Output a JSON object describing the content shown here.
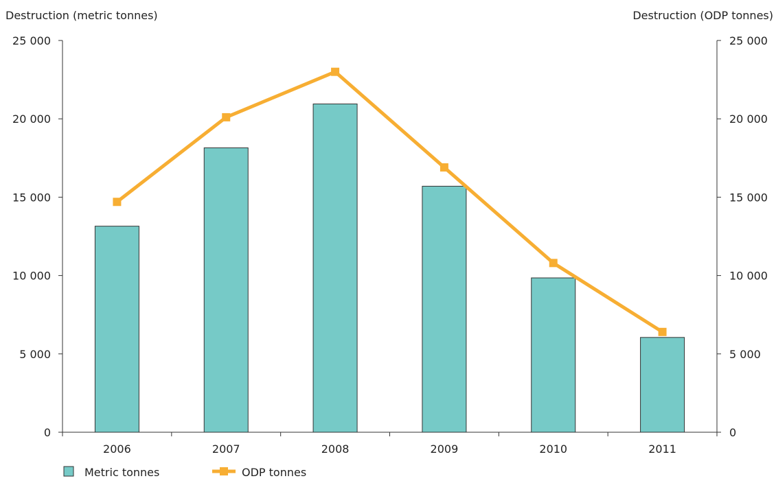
{
  "chart_data": {
    "type": "bar",
    "categories": [
      "2006",
      "2007",
      "2008",
      "2009",
      "2010",
      "2011"
    ],
    "series": [
      {
        "name": "Metric tonnes",
        "type": "bar",
        "axis": "left",
        "values": [
          13150,
          18150,
          20950,
          15700,
          9850,
          6050
        ],
        "color": "#76cac7"
      },
      {
        "name": "ODP tonnes",
        "type": "line",
        "axis": "right",
        "marker": "square",
        "values": [
          14700,
          20100,
          23000,
          16900,
          10800,
          6400
        ],
        "color": "#f7ae33"
      }
    ],
    "ylabel_left": "Destruction (metric tonnes)",
    "ylabel_right": "Destruction (ODP tonnes)",
    "ylim_left": [
      0,
      25000
    ],
    "ylim_right": [
      0,
      25000
    ],
    "yticks": [
      0,
      5000,
      10000,
      15000,
      20000,
      25000
    ],
    "ytick_labels": [
      "0",
      "5 000",
      "10 000",
      "15 000",
      "20 000",
      "25 000"
    ],
    "grid": false,
    "legend_position": "bottom-left",
    "bar_edge_color": "#333333",
    "axis_color": "#333333"
  }
}
